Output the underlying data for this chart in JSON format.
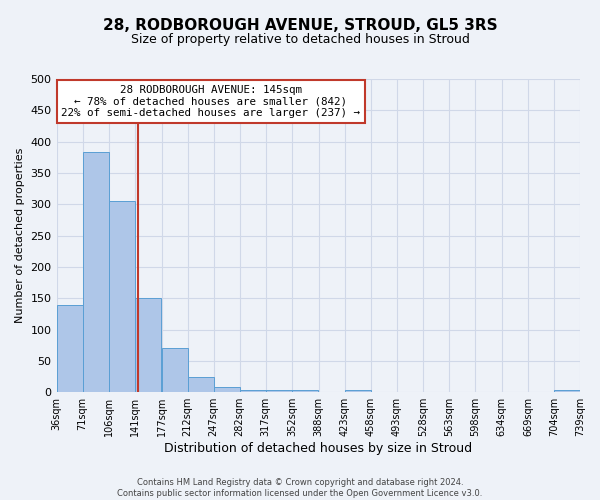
{
  "title": "28, RODBOROUGH AVENUE, STROUD, GL5 3RS",
  "subtitle": "Size of property relative to detached houses in Stroud",
  "xlabel": "Distribution of detached houses by size in Stroud",
  "ylabel": "Number of detached properties",
  "bin_edges": [
    36,
    71,
    106,
    141,
    177,
    212,
    247,
    282,
    317,
    352,
    388,
    423,
    458,
    493,
    528,
    563,
    598,
    634,
    669,
    704,
    739
  ],
  "bin_labels": [
    "36sqm",
    "71sqm",
    "106sqm",
    "141sqm",
    "177sqm",
    "212sqm",
    "247sqm",
    "282sqm",
    "317sqm",
    "352sqm",
    "388sqm",
    "423sqm",
    "458sqm",
    "493sqm",
    "528sqm",
    "563sqm",
    "598sqm",
    "634sqm",
    "669sqm",
    "704sqm",
    "739sqm"
  ],
  "bar_heights": [
    140,
    383,
    305,
    150,
    70,
    25,
    8,
    3,
    3,
    3,
    0,
    3,
    0,
    0,
    0,
    0,
    0,
    0,
    0,
    3
  ],
  "bar_color": "#aec6e8",
  "bar_edge_color": "#5a9fd4",
  "property_line_x": 145,
  "vline_color": "#c0392b",
  "ylim": [
    0,
    500
  ],
  "yticks": [
    0,
    50,
    100,
    150,
    200,
    250,
    300,
    350,
    400,
    450,
    500
  ],
  "annotation_box_text": "28 RODBOROUGH AVENUE: 145sqm\n← 78% of detached houses are smaller (842)\n22% of semi-detached houses are larger (237) →",
  "annotation_box_color": "#ffffff",
  "annotation_box_edge_color": "#c0392b",
  "footer_line1": "Contains HM Land Registry data © Crown copyright and database right 2024.",
  "footer_line2": "Contains public sector information licensed under the Open Government Licence v3.0.",
  "bg_color": "#eef2f8",
  "grid_color": "#d0d8e8"
}
